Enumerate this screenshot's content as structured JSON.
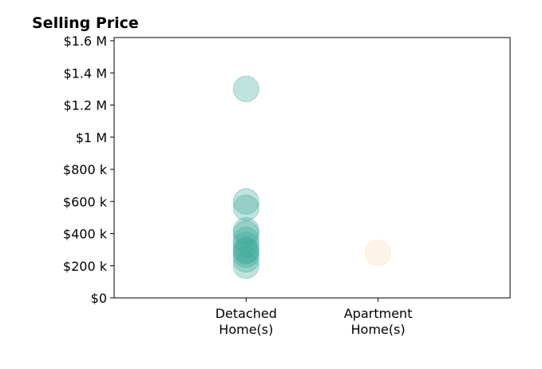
{
  "chart_data": {
    "type": "scatter",
    "title": "Selling Price",
    "xlabel": "",
    "ylabel": "",
    "categories": [
      "Detached\nHome(s)",
      "Apartment\nHome(s)"
    ],
    "xlim": [
      -1,
      2
    ],
    "ylim": [
      0,
      1620000
    ],
    "y_ticks": [
      {
        "value": 0,
        "label": "$0"
      },
      {
        "value": 200000,
        "label": "$200 k"
      },
      {
        "value": 400000,
        "label": "$400 k"
      },
      {
        "value": 600000,
        "label": "$600 k"
      },
      {
        "value": 800000,
        "label": "$800 k"
      },
      {
        "value": 1000000,
        "label": "$1 M"
      },
      {
        "value": 1200000,
        "label": "$1.2 M"
      },
      {
        "value": 1400000,
        "label": "$1.4 M"
      },
      {
        "value": 1600000,
        "label": "$1.6 M"
      }
    ],
    "grid": false,
    "series": [
      {
        "category": "Detached\nHome(s)",
        "color": "#3aa899",
        "values": [
          1300000,
          600000,
          560000,
          420000,
          400000,
          360000,
          330000,
          300000,
          290000,
          270000,
          240000,
          200000
        ]
      },
      {
        "category": "Apartment\nHome(s)",
        "color": "#f5deb0",
        "values": [
          280000
        ]
      }
    ]
  }
}
